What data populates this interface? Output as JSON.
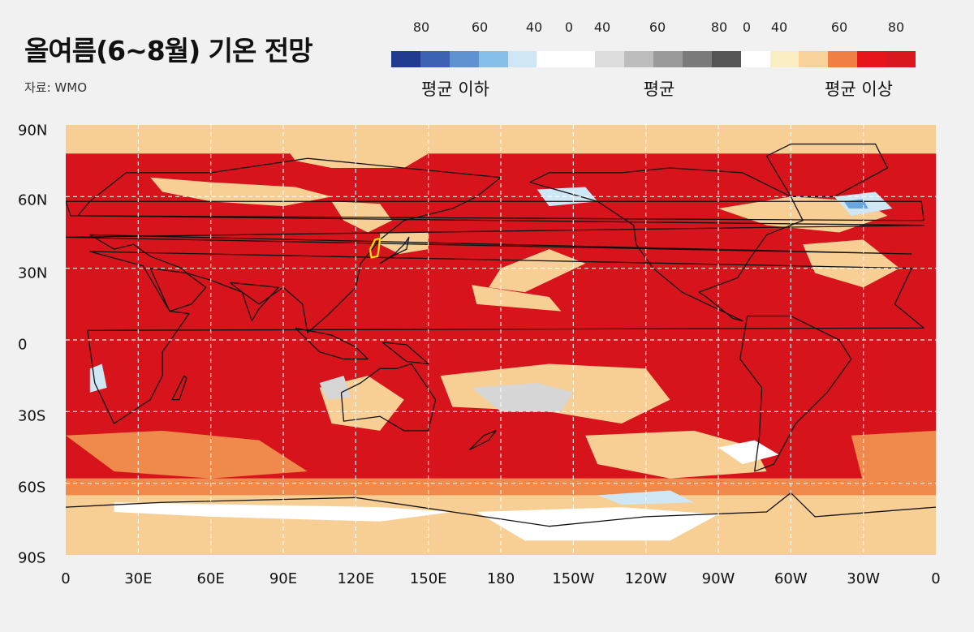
{
  "header": {
    "title": "올여름(6~8월) 기온 전망",
    "source": "자료: WMO"
  },
  "legend": {
    "ticks": [
      "80",
      "60",
      "40",
      "0",
      "40",
      "60",
      "80",
      "0",
      "40",
      "60",
      "80"
    ],
    "groups": [
      "평균 이하",
      "평균",
      "평균 이상"
    ],
    "colors": [
      "#1f3a8f",
      "#3d62b3",
      "#5f92d0",
      "#86c0ea",
      "#cfe7f4",
      "#ffffff",
      "#ffffff",
      "#dcdcdc",
      "#bdbdbd",
      "#9a9a9a",
      "#7a7a7a",
      "#555555",
      "#ffffff",
      "#fbeec3",
      "#f8d29a",
      "#ef7f45",
      "#e8141c",
      "#d9171f"
    ]
  },
  "axes": {
    "lat_labels": [
      "90N",
      "60N",
      "30N",
      "0",
      "30S",
      "60S",
      "90S"
    ],
    "lon_labels": [
      "0",
      "30E",
      "60E",
      "90E",
      "120E",
      "150E",
      "180",
      "150W",
      "120W",
      "90W",
      "60W",
      "30W",
      "0"
    ]
  },
  "map": {
    "type": "global temperature outlook (probability of above/below normal)",
    "projection": "equirectangular",
    "lon_range": [
      0,
      360
    ],
    "lat_range": [
      -90,
      90
    ],
    "grid_step_deg": 30,
    "dominant_category": "above normal",
    "colors": {
      "above_high": "#d7141c",
      "above_mid": "#ef8a4c",
      "above_low": "#f7cf95",
      "above_lowest": "#fbedc6",
      "normal": "#d6d6d6",
      "below": "#cfe6f5",
      "below_mid": "#6aa6df",
      "neutral": "#ffffff",
      "coastline": "#111111",
      "highlight": "#ffe200"
    }
  }
}
